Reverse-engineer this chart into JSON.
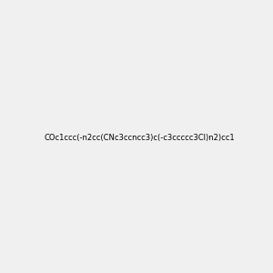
{
  "smiles": "COc1ccc(-n2cc(CNc3ccncc3)c(-c3ccccc3Cl)n2)cc1",
  "image_size": 300,
  "background_color": "#f0f0f0",
  "title": ""
}
